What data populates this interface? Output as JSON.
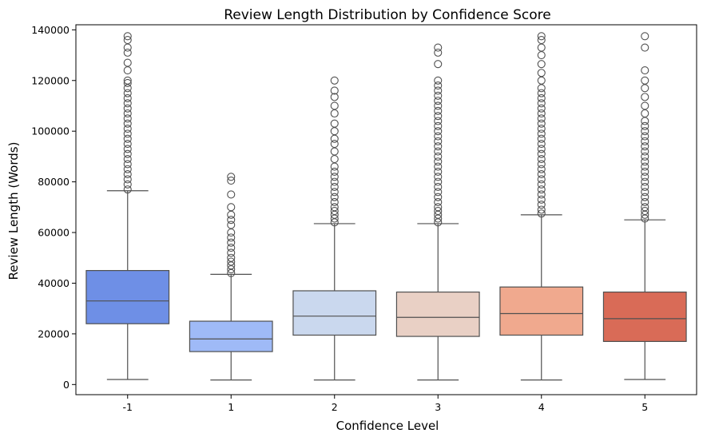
{
  "chart_data": {
    "type": "box",
    "title": "Review Length Distribution by Confidence Score",
    "xlabel": "Confidence Level",
    "ylabel": "Review Length (Words)",
    "ylim": [
      -4000,
      142000
    ],
    "yticks": [
      0,
      20000,
      40000,
      60000,
      80000,
      100000,
      120000,
      140000
    ],
    "grid": false,
    "legend": "none",
    "categories": [
      "-1",
      "1",
      "2",
      "3",
      "4",
      "5"
    ],
    "colors": [
      "#6e8fe6",
      "#9fbaf7",
      "#cad8ee",
      "#e9d0c5",
      "#f0a98e",
      "#d96b57"
    ],
    "boxes": [
      {
        "category": "-1",
        "whisker_low": 2000,
        "q1": 24000,
        "median": 33000,
        "q3": 45000,
        "whisker_high": 76500,
        "outliers": [
          77000,
          79000,
          81000,
          83000,
          85000,
          87000,
          89000,
          91000,
          93000,
          95000,
          97000,
          99000,
          101000,
          103000,
          105000,
          107000,
          109000,
          111000,
          113000,
          115000,
          117000,
          119000,
          120000,
          124000,
          127000,
          131000,
          133000,
          136000,
          137500
        ]
      },
      {
        "category": "1",
        "whisker_low": 1800,
        "q1": 13000,
        "median": 18000,
        "q3": 25000,
        "whisker_high": 43500,
        "outliers": [
          44000,
          45500,
          47000,
          48500,
          50000,
          52000,
          54000,
          56000,
          58000,
          60000,
          63000,
          65000,
          67000,
          70000,
          75000,
          80500,
          82000
        ]
      },
      {
        "category": "2",
        "whisker_low": 1800,
        "q1": 19500,
        "median": 27000,
        "q3": 37000,
        "whisker_high": 63500,
        "outliers": [
          64000,
          65500,
          67000,
          68500,
          70000,
          72000,
          74000,
          76000,
          78000,
          80000,
          82000,
          84000,
          86000,
          89000,
          92000,
          95000,
          97000,
          100000,
          103000,
          107000,
          110000,
          113500,
          116000,
          120000
        ]
      },
      {
        "category": "3",
        "whisker_low": 1800,
        "q1": 19000,
        "median": 26500,
        "q3": 36500,
        "whisker_high": 63500,
        "outliers": [
          64000,
          65500,
          67000,
          68500,
          70000,
          72000,
          74000,
          76000,
          78000,
          80000,
          82000,
          84000,
          86000,
          88000,
          90000,
          92000,
          94000,
          96000,
          98000,
          100000,
          102000,
          104000,
          106000,
          108000,
          110000,
          112000,
          114000,
          116000,
          118000,
          120000,
          126500,
          131000,
          133000
        ]
      },
      {
        "category": "4",
        "whisker_low": 1800,
        "q1": 19500,
        "median": 28000,
        "q3": 38500,
        "whisker_high": 67000,
        "outliers": [
          67500,
          69000,
          71000,
          73000,
          75000,
          77000,
          79000,
          81000,
          83000,
          85000,
          87000,
          89000,
          91000,
          93000,
          95000,
          97000,
          99000,
          101000,
          103000,
          105000,
          107000,
          109000,
          111000,
          113000,
          115000,
          117000,
          120000,
          123000,
          126500,
          130000,
          133000,
          136000,
          137500
        ]
      },
      {
        "category": "5",
        "whisker_low": 2000,
        "q1": 17000,
        "median": 26000,
        "q3": 36500,
        "whisker_high": 65000,
        "outliers": [
          65500,
          67000,
          68500,
          70000,
          72000,
          74000,
          76000,
          78000,
          80000,
          82000,
          84000,
          86000,
          88000,
          90000,
          92000,
          94000,
          96000,
          98000,
          100000,
          102000,
          104000,
          107000,
          110000,
          113500,
          117000,
          120000,
          124000,
          133000,
          137500
        ]
      }
    ]
  }
}
